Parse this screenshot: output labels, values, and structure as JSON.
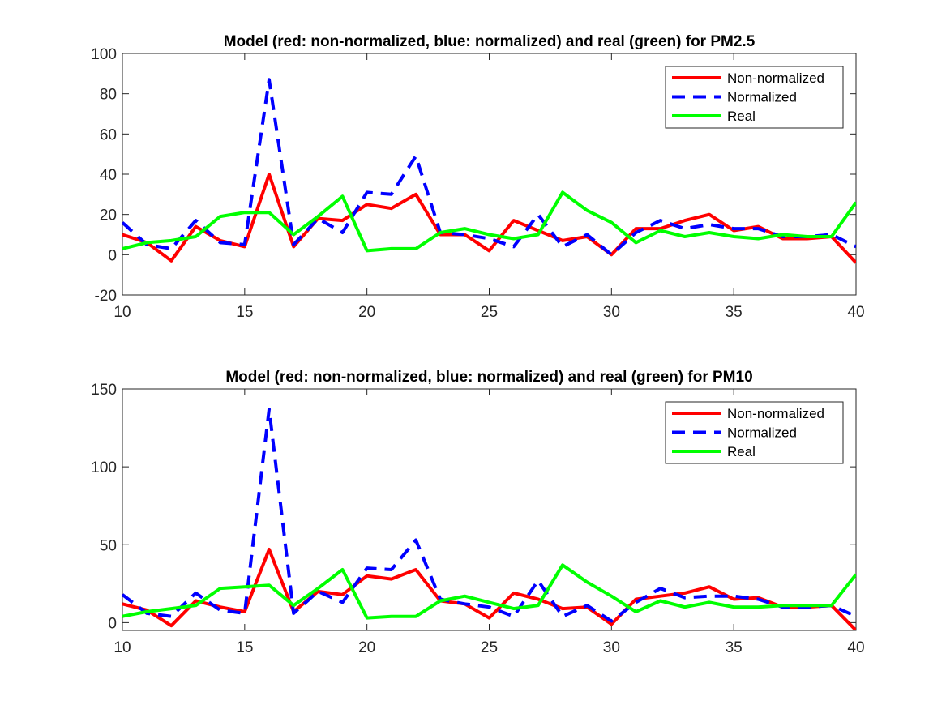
{
  "chart_data": [
    {
      "type": "line",
      "title": "Model (red: non-normalized, blue: normalized) and real (green) for PM2.5",
      "xlabel": "",
      "ylabel": "",
      "xlim": [
        10,
        40
      ],
      "ylim": [
        -20,
        100
      ],
      "xticks": [
        10,
        15,
        20,
        25,
        30,
        35,
        40
      ],
      "yticks": [
        -20,
        0,
        20,
        40,
        60,
        80,
        100
      ],
      "grid": false,
      "legend_position": "top-right",
      "x": [
        10,
        11,
        12,
        13,
        14,
        15,
        16,
        17,
        18,
        19,
        20,
        21,
        22,
        23,
        24,
        25,
        26,
        27,
        28,
        29,
        30,
        31,
        32,
        33,
        34,
        35,
        36,
        37,
        38,
        39,
        40
      ],
      "series": [
        {
          "name": "Non-normalized",
          "color": "#ff0000",
          "style": "solid",
          "values": [
            10,
            6,
            -3,
            14,
            7,
            4,
            40,
            4,
            18,
            17,
            25,
            23,
            30,
            10,
            10,
            2,
            17,
            12,
            7,
            9,
            0,
            13,
            13,
            17,
            20,
            12,
            14,
            8,
            8,
            9,
            -4
          ]
        },
        {
          "name": "Normalized",
          "color": "#0000ff",
          "style": "dashed",
          "values": [
            16,
            5,
            3,
            17,
            6,
            5,
            87,
            5,
            18,
            11,
            31,
            30,
            49,
            11,
            10,
            8,
            4,
            20,
            4,
            10,
            0,
            11,
            17,
            13,
            15,
            13,
            13,
            9,
            9,
            10,
            4
          ]
        },
        {
          "name": "Real",
          "color": "#00ff00",
          "style": "solid",
          "values": [
            3,
            6,
            7,
            9,
            19,
            21,
            21,
            10,
            19,
            29,
            2,
            3,
            3,
            11,
            13,
            10,
            8,
            10,
            31,
            22,
            16,
            6,
            12,
            9,
            11,
            9,
            8,
            10,
            9,
            9,
            26
          ]
        }
      ]
    },
    {
      "type": "line",
      "title": "Model (red: non-normalized, blue: normalized) and real (green) for PM10",
      "xlabel": "",
      "ylabel": "",
      "xlim": [
        10,
        40
      ],
      "ylim": [
        -5,
        150
      ],
      "xticks": [
        10,
        15,
        20,
        25,
        30,
        35,
        40
      ],
      "yticks": [
        0,
        50,
        100,
        150
      ],
      "grid": false,
      "legend_position": "top-right",
      "x": [
        10,
        11,
        12,
        13,
        14,
        15,
        16,
        17,
        18,
        19,
        20,
        21,
        22,
        23,
        24,
        25,
        26,
        27,
        28,
        29,
        30,
        31,
        32,
        33,
        34,
        35,
        36,
        37,
        38,
        39,
        40
      ],
      "series": [
        {
          "name": "Non-normalized",
          "color": "#ff0000",
          "style": "solid",
          "values": [
            12,
            8,
            -2,
            14,
            10,
            7,
            47,
            7,
            20,
            18,
            30,
            28,
            34,
            14,
            12,
            3,
            19,
            15,
            9,
            10,
            -1,
            15,
            17,
            19,
            23,
            15,
            16,
            10,
            10,
            11,
            -5
          ]
        },
        {
          "name": "Normalized",
          "color": "#0000ff",
          "style": "dashed",
          "values": [
            18,
            6,
            4,
            19,
            8,
            6,
            137,
            6,
            20,
            13,
            35,
            34,
            53,
            15,
            12,
            10,
            4,
            27,
            4,
            11,
            1,
            13,
            22,
            16,
            17,
            17,
            15,
            10,
            10,
            11,
            4
          ]
        },
        {
          "name": "Real",
          "color": "#00ff00",
          "style": "solid",
          "values": [
            4,
            7,
            9,
            11,
            22,
            23,
            24,
            11,
            22,
            34,
            3,
            4,
            4,
            14,
            17,
            13,
            9,
            11,
            37,
            26,
            17,
            7,
            14,
            10,
            13,
            10,
            10,
            11,
            11,
            11,
            31
          ]
        }
      ]
    }
  ]
}
